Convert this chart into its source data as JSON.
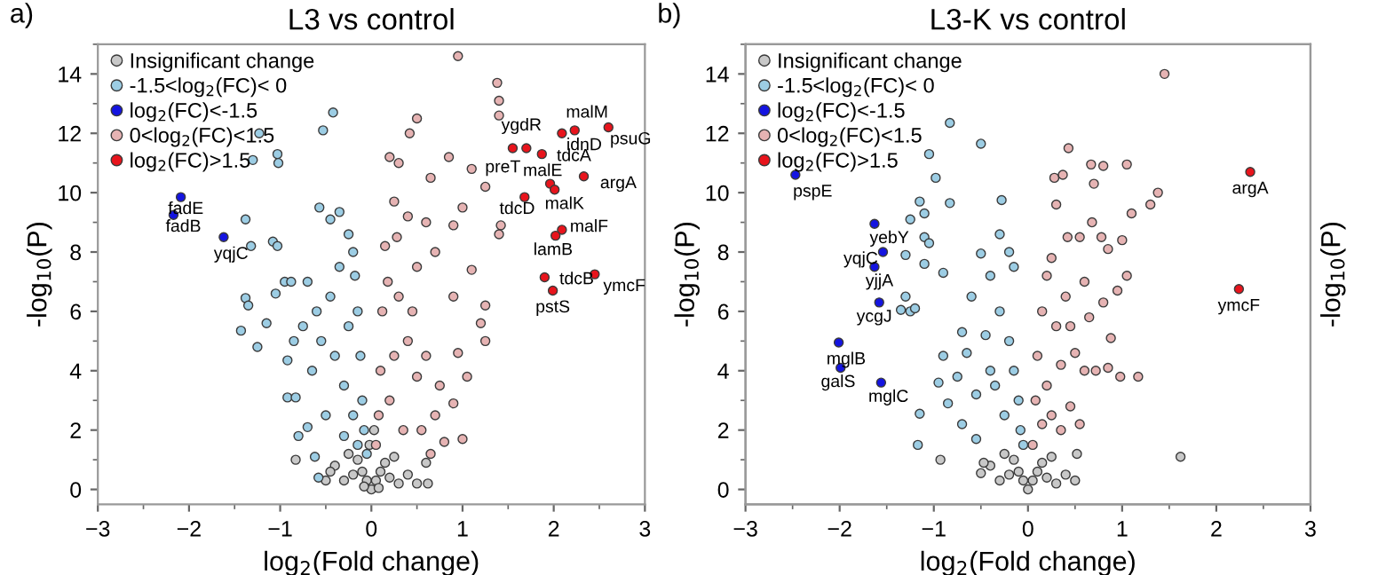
{
  "chart_data": [
    {
      "type": "scatter",
      "title": "L3 vs control",
      "xlabel": "log$_{2}$(Fold change)",
      "ylabel": "-log$_{10}$(P)",
      "xlim": [
        -3,
        3
      ],
      "xticks": [
        -3,
        -2,
        -1,
        0,
        1,
        2,
        3
      ],
      "ylim": [
        -0.5,
        15
      ],
      "yticks": [
        0,
        2,
        4,
        6,
        8,
        10,
        12,
        14
      ],
      "legend": "top left",
      "marker": "circle",
      "grid": false,
      "annotations": [
        "a)",
        {
          "text": "preT",
          "x": 1.55,
          "y": 11.5
        },
        {
          "text": "ygdR",
          "x": 1.7,
          "y": 11.5
        },
        {
          "text": "tdcA",
          "x": 1.87,
          "y": 11.3
        },
        {
          "text": "idnD",
          "x": 2.09,
          "y": 12.0
        },
        {
          "text": "malM",
          "x": 2.23,
          "y": 12.1
        },
        {
          "text": "psuG",
          "x": 2.6,
          "y": 12.2
        },
        {
          "text": "malE",
          "x": 1.96,
          "y": 10.3
        },
        {
          "text": "argA",
          "x": 2.33,
          "y": 10.55
        },
        {
          "text": "malK",
          "x": 2.01,
          "y": 10.1
        },
        {
          "text": "tdcD",
          "x": 1.68,
          "y": 9.85
        },
        {
          "text": "malF",
          "x": 2.09,
          "y": 8.75
        },
        {
          "text": "lamB",
          "x": 2.02,
          "y": 8.55
        },
        {
          "text": "tdcB",
          "x": 1.9,
          "y": 7.15
        },
        {
          "text": "pstS",
          "x": 1.99,
          "y": 6.7
        },
        {
          "text": "ymcF",
          "x": 2.45,
          "y": 7.25
        },
        {
          "text": "fadE",
          "x": -2.09,
          "y": 9.85
        },
        {
          "text": "fadB",
          "x": -2.17,
          "y": 9.25
        },
        {
          "text": "yqjC",
          "x": -1.62,
          "y": 8.5
        }
      ],
      "series": [
        {
          "name": "Insignificant change",
          "color": "#c8c8c8",
          "x": [
            0,
            -0.05,
            0.05,
            -0.1,
            0.1,
            -0.15,
            0.15,
            -0.2,
            0.2,
            -0.3,
            0.3,
            -0.4,
            0.4,
            -0.45,
            0.6,
            -0.25,
            0.25,
            -0.02,
            0.03,
            -0.5,
            0.5,
            0.62,
            -0.08,
            0.08,
            -0.83
          ],
          "values": [
            0,
            0.3,
            0.3,
            0.6,
            0.6,
            1.0,
            0.9,
            0.5,
            0.4,
            0.3,
            0.2,
            0.8,
            0.5,
            0.6,
            0.9,
            1.2,
            1.1,
            1.5,
            2.0,
            0.3,
            0.2,
            0.2,
            0.1,
            0.05,
            1.0
          ]
        },
        {
          "name": "-1.5<log$_{2}$(FC)< 0",
          "color": "#9ccde4",
          "x": [
            -0.42,
            -0.53,
            -1.23,
            -1.03,
            -1.02,
            -1.3,
            -1.38,
            -1.38,
            -1.35,
            -1.43,
            -1.32,
            -1.08,
            -1.03,
            -0.95,
            -0.88,
            -0.57,
            -0.35,
            -0.45,
            -0.25,
            -1.05,
            -1.15,
            -0.92,
            -0.92,
            -0.83,
            -0.8,
            -0.7,
            -0.62,
            -0.58,
            -0.55,
            -0.45,
            -0.35,
            -0.2,
            -0.18,
            -0.15,
            -0.12,
            -0.1,
            -0.08,
            -0.3,
            -0.5,
            -0.65,
            -0.75,
            -0.4,
            -0.25,
            -0.2,
            -0.6,
            -0.85,
            -0.3,
            -0.15,
            -0.05,
            -1.25,
            -0.7
          ],
          "values": [
            12.7,
            12.1,
            12.0,
            11.3,
            11.0,
            11.1,
            9.1,
            6.45,
            6.2,
            5.35,
            8.2,
            8.35,
            8.2,
            7.0,
            7.0,
            9.5,
            9.35,
            9.1,
            8.6,
            6.6,
            5.6,
            4.35,
            3.1,
            3.1,
            1.8,
            2.1,
            1.1,
            0.4,
            5.0,
            6.5,
            7.5,
            8.0,
            7.2,
            6.0,
            4.5,
            3.0,
            2.0,
            3.5,
            2.5,
            4.0,
            5.5,
            4.5,
            5.5,
            2.5,
            6.0,
            5.0,
            1.8,
            1.5,
            1.2,
            4.8,
            7.0
          ]
        },
        {
          "name": "log$_{2}$(FC)<-1.5",
          "color": "#1414e0",
          "x": [
            -2.09,
            -2.17,
            -1.62
          ],
          "values": [
            9.85,
            9.25,
            8.5
          ]
        },
        {
          "name": "0<log$_{2}$(FC)<1.5",
          "color": "#e6b3b3",
          "x": [
            0.95,
            1.38,
            1.4,
            1.4,
            0.5,
            0.42,
            0.85,
            0.2,
            0.3,
            1.1,
            0.65,
            1.25,
            0.25,
            1.0,
            1.42,
            1.4,
            0.6,
            0.9,
            0.7,
            1.1,
            0.5,
            1.25,
            1.2,
            1.25,
            0.9,
            0.95,
            0.4,
            0.5,
            0.7,
            0.9,
            0.8,
            1.0,
            0.65,
            0.15,
            0.12,
            0.1,
            0.08,
            0.05,
            0.25,
            0.3,
            0.35,
            0.2,
            0.45,
            0.6,
            0.18,
            0.55,
            0.28,
            0.75,
            0.4,
            1.05
          ],
          "values": [
            14.6,
            13.7,
            13.1,
            12.6,
            12.5,
            12.0,
            11.2,
            11.2,
            11.0,
            10.8,
            10.5,
            10.2,
            9.7,
            9.5,
            8.9,
            8.6,
            9.0,
            8.9,
            8.0,
            7.4,
            7.5,
            6.2,
            5.6,
            5.0,
            6.5,
            4.6,
            5.0,
            3.8,
            2.5,
            2.9,
            1.6,
            1.7,
            1.2,
            8.2,
            6.0,
            4.0,
            2.5,
            1.5,
            4.5,
            6.5,
            2.0,
            3.0,
            6.0,
            4.5,
            7.0,
            2.0,
            8.5,
            3.5,
            9.2,
            3.8
          ]
        },
        {
          "name": "log$_{2}$(FC)>1.5",
          "color": "#e8141c",
          "x": [
            1.55,
            1.7,
            1.87,
            2.09,
            2.23,
            2.6,
            1.96,
            2.33,
            2.01,
            1.68,
            2.09,
            2.02,
            1.9,
            1.99,
            2.45
          ],
          "values": [
            11.5,
            11.5,
            11.3,
            12.0,
            12.1,
            12.2,
            10.3,
            10.55,
            10.1,
            9.85,
            8.75,
            8.55,
            7.15,
            6.7,
            7.25
          ]
        }
      ]
    },
    {
      "type": "scatter",
      "title": "L3-K vs control",
      "xlabel": "log$_{2}$(Fold change)",
      "ylabel": "-log$_{10}$(P)",
      "y2label": "-log$_{10}$(P)",
      "xlim": [
        -3,
        3
      ],
      "xticks": [
        -3,
        -2,
        -1,
        0,
        1,
        2,
        3
      ],
      "ylim": [
        -0.5,
        15
      ],
      "yticks": [
        0,
        2,
        4,
        6,
        8,
        10,
        12,
        14
      ],
      "legend": "top left",
      "marker": "circle",
      "grid": false,
      "annotations": [
        "b)",
        {
          "text": "pspE",
          "x": -2.47,
          "y": 10.6
        },
        {
          "text": "yebY",
          "x": -1.63,
          "y": 8.95
        },
        {
          "text": "yqjC",
          "x": -1.54,
          "y": 8.0
        },
        {
          "text": "yjjA",
          "x": -1.63,
          "y": 7.5
        },
        {
          "text": "ycgJ",
          "x": -1.58,
          "y": 6.3
        },
        {
          "text": "mglB",
          "x": -2.01,
          "y": 4.95
        },
        {
          "text": "galS",
          "x": -1.99,
          "y": 4.1
        },
        {
          "text": "mglC",
          "x": -1.56,
          "y": 3.6
        },
        {
          "text": "argA",
          "x": 2.36,
          "y": 10.7
        },
        {
          "text": "ymcF",
          "x": 2.24,
          "y": 6.75
        }
      ],
      "series": [
        {
          "name": "Insignificant change",
          "color": "#c8c8c8",
          "x": [
            0,
            -0.05,
            0.05,
            -0.1,
            0.1,
            -0.15,
            0.15,
            -0.2,
            0.2,
            -0.3,
            0.3,
            -0.4,
            0.4,
            0.5,
            -0.25,
            0.25,
            1.62,
            -0.5,
            -0.93,
            -0.47,
            0.52
          ],
          "values": [
            0,
            0.3,
            0.3,
            0.6,
            0.6,
            1.0,
            0.9,
            0.5,
            0.4,
            0.3,
            0.2,
            0.8,
            0.5,
            0.3,
            1.2,
            1.1,
            1.1,
            0.55,
            1.0,
            0.9,
            1.2
          ]
        },
        {
          "name": "-1.5<log$_{2}$(FC)< 0",
          "color": "#9ccde4",
          "x": [
            -0.83,
            -0.5,
            -1.05,
            -0.98,
            -0.28,
            -0.83,
            -1.15,
            -1.1,
            -1.25,
            -1.1,
            -1.05,
            -0.3,
            -0.5,
            -1.3,
            -1.1,
            -0.9,
            -1.35,
            -1.25,
            -1.2,
            -1.3,
            -1.15,
            -1.17,
            -0.9,
            -0.95,
            -0.85,
            -0.7,
            -0.55,
            -0.7,
            -0.6,
            -0.4,
            -0.3,
            -0.2,
            -0.15,
            -0.1,
            -0.08,
            -0.4,
            -0.55,
            -0.25,
            -0.35,
            -0.75,
            -0.15,
            -0.2,
            -0.05,
            -0.65,
            -0.45
          ],
          "values": [
            12.35,
            11.65,
            11.3,
            10.5,
            9.75,
            9.65,
            9.7,
            9.3,
            9.1,
            8.5,
            8.3,
            8.6,
            7.95,
            7.9,
            7.6,
            7.3,
            6.05,
            6.0,
            6.1,
            6.5,
            2.55,
            1.5,
            4.5,
            3.6,
            2.9,
            2.2,
            1.7,
            5.3,
            6.5,
            7.2,
            6.0,
            5.0,
            4.0,
            3.0,
            2.0,
            4.0,
            3.2,
            2.5,
            3.5,
            3.8,
            7.5,
            8.0,
            1.5,
            4.6,
            5.2
          ]
        },
        {
          "name": "log$_{2}$(FC)<-1.5",
          "color": "#1414e0",
          "x": [
            -2.47,
            -1.63,
            -1.54,
            -1.63,
            -1.58,
            -2.01,
            -1.99,
            -1.56
          ],
          "values": [
            10.6,
            8.95,
            8.0,
            7.5,
            6.3,
            4.95,
            4.1,
            3.6
          ]
        },
        {
          "name": "0<log$_{2}$(FC)<1.5",
          "color": "#e6b3b3",
          "x": [
            1.45,
            0.43,
            0.67,
            0.8,
            1.05,
            0.28,
            0.37,
            0.7,
            1.38,
            1.3,
            1.1,
            0.3,
            0.68,
            0.42,
            0.55,
            0.78,
            1.0,
            0.85,
            1.05,
            0.95,
            0.8,
            0.88,
            1.17,
            0.98,
            0.85,
            0.6,
            0.72,
            0.5,
            0.45,
            0.55,
            0.35,
            0.25,
            0.15,
            0.1,
            0.08,
            0.05,
            0.3,
            0.2,
            0.4,
            0.35,
            0.25,
            0.6,
            0.45,
            0.2,
            0.15,
            0.65
          ],
          "values": [
            14.0,
            11.5,
            10.95,
            10.9,
            10.95,
            10.5,
            10.6,
            10.3,
            10.0,
            9.6,
            9.3,
            9.6,
            9.0,
            8.5,
            8.5,
            8.5,
            8.4,
            8.1,
            7.2,
            6.7,
            6.3,
            5.1,
            3.8,
            3.8,
            4.1,
            4.0,
            4.0,
            4.6,
            2.8,
            2.2,
            2.0,
            7.8,
            6.0,
            4.5,
            3.0,
            1.5,
            5.5,
            3.5,
            6.5,
            4.2,
            2.5,
            7.0,
            5.5,
            7.2,
            2.2,
            5.8
          ]
        },
        {
          "name": "log$_{2}$(FC)>1.5",
          "color": "#e8141c",
          "x": [
            2.36,
            2.24
          ],
          "values": [
            10.7,
            6.75
          ]
        }
      ]
    }
  ]
}
